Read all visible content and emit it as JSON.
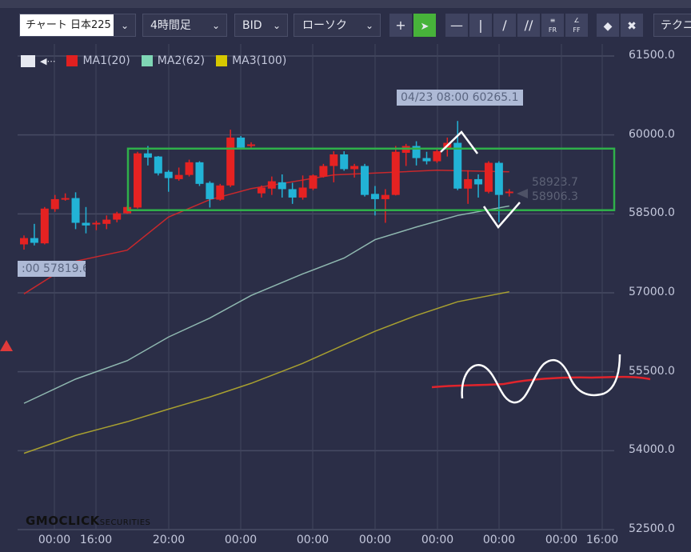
{
  "toolbar": {
    "symbol": "チャート 日本225",
    "timeframe": "4時間足",
    "price_type": "BID",
    "chart_type": "ローソク",
    "tools": [
      "crosshair-icon",
      "cursor-arrow-icon",
      "horizontal-line-icon",
      "vertical-line-icon",
      "trend-line-icon",
      "parallel-channel-icon",
      "fibonacci-retracement-icon",
      "fibonacci-fan-icon",
      "eraser-icon",
      "delete-all-drawings-icon"
    ],
    "technical_label": "テクニ",
    "active_tool_color": "#47b33a"
  },
  "legend": {
    "items": [
      {
        "label": "MA1(20)",
        "color": "#e02020"
      },
      {
        "label": "MA2(62)",
        "color": "#7fd6b5"
      },
      {
        "label": "MA3(100)",
        "color": "#d6c800"
      }
    ]
  },
  "chart_data": {
    "type": "candlestick",
    "ylim": [
      52500,
      61500
    ],
    "y_ticks": [
      "61500.0",
      "60000.0",
      "58500.0",
      "57000.0",
      "55500.0",
      "54000.0",
      "52500.0"
    ],
    "x_ticks": [
      "00:00",
      "16:00",
      "20:00",
      "00:00",
      "00:00",
      "00:00",
      "00:00",
      "00:00",
      "00:00",
      "16:00"
    ],
    "grid": true,
    "up_color": "#e52222",
    "down_color": "#22b3d6",
    "candles": [
      [
        57920,
        58090,
        57820,
        58040
      ],
      [
        58040,
        58310,
        57900,
        57950
      ],
      [
        57940,
        58630,
        57920,
        58600
      ],
      [
        58590,
        58860,
        58540,
        58780
      ],
      [
        58770,
        58890,
        58750,
        58800
      ],
      [
        58800,
        58910,
        58210,
        58330
      ],
      [
        58330,
        58630,
        58130,
        58280
      ],
      [
        58300,
        58370,
        58190,
        58330
      ],
      [
        58310,
        58470,
        58210,
        58390
      ],
      [
        58390,
        58540,
        58340,
        58510
      ],
      [
        58510,
        58650,
        58500,
        58630
      ],
      [
        58620,
        59680,
        58600,
        59650
      ],
      [
        59650,
        59790,
        59420,
        59570
      ],
      [
        59590,
        59600,
        59230,
        59270
      ],
      [
        59300,
        59330,
        58920,
        59180
      ],
      [
        59160,
        59380,
        59130,
        59240
      ],
      [
        59240,
        59530,
        59210,
        59480
      ],
      [
        59480,
        59500,
        59030,
        59070
      ],
      [
        59090,
        59120,
        58620,
        58780
      ],
      [
        58770,
        59070,
        58750,
        59040
      ],
      [
        59040,
        60100,
        59010,
        59950
      ],
      [
        59950,
        59980,
        59730,
        59760
      ],
      [
        59790,
        59860,
        59760,
        59820
      ],
      [
        58890,
        59040,
        58810,
        59000
      ],
      [
        58980,
        59210,
        58860,
        59120
      ],
      [
        59100,
        59250,
        58810,
        58970
      ],
      [
        58970,
        59090,
        58690,
        58810
      ],
      [
        58810,
        59230,
        58770,
        59000
      ],
      [
        58980,
        59250,
        58950,
        59230
      ],
      [
        59210,
        59450,
        59190,
        59410
      ],
      [
        59410,
        59690,
        59100,
        59630
      ],
      [
        59630,
        59690,
        59320,
        59350
      ],
      [
        59350,
        59450,
        59190,
        59410
      ],
      [
        59410,
        59450,
        58830,
        58860
      ],
      [
        58880,
        59030,
        58470,
        58780
      ],
      [
        58780,
        58970,
        58330,
        58860
      ],
      [
        58860,
        59790,
        58850,
        59680
      ],
      [
        59660,
        59830,
        59410,
        59790
      ],
      [
        59790,
        59880,
        59420,
        59560
      ],
      [
        59560,
        59680,
        59440,
        59500
      ],
      [
        59500,
        59730,
        59470,
        59690
      ],
      [
        59730,
        59950,
        59590,
        59850
      ],
      [
        59850,
        60265.1,
        58950,
        58980
      ],
      [
        58980,
        59330,
        58690,
        59160
      ],
      [
        59160,
        59250,
        58810,
        59060
      ],
      [
        58920,
        59500,
        58890,
        59470
      ],
      [
        59470,
        59500,
        58340,
        58860
      ],
      [
        58906.3,
        58970,
        58830,
        58923.7
      ]
    ],
    "ma_series": [
      {
        "name": "MA1(20)",
        "color": "#c8282c",
        "points": [
          [
            0,
            56980
          ],
          [
            5,
            57600
          ],
          [
            10,
            57810
          ],
          [
            14,
            58440
          ],
          [
            18,
            58770
          ],
          [
            22,
            58980
          ],
          [
            30,
            59240
          ],
          [
            40,
            59330
          ],
          [
            47,
            59300
          ]
        ]
      },
      {
        "name": "MA2(62)",
        "color": "#8fb8b0",
        "points": [
          [
            0,
            54900
          ],
          [
            5,
            55360
          ],
          [
            10,
            55710
          ],
          [
            14,
            56160
          ],
          [
            18,
            56520
          ],
          [
            22,
            56950
          ],
          [
            27,
            57360
          ],
          [
            31,
            57660
          ],
          [
            34,
            58010
          ],
          [
            38,
            58250
          ],
          [
            42,
            58470
          ],
          [
            47,
            58650
          ]
        ]
      },
      {
        "name": "MA3(100)",
        "color": "#a8a030",
        "points": [
          [
            0,
            53950
          ],
          [
            5,
            54290
          ],
          [
            10,
            54550
          ],
          [
            14,
            54790
          ],
          [
            18,
            55020
          ],
          [
            22,
            55280
          ],
          [
            27,
            55660
          ],
          [
            31,
            56010
          ],
          [
            34,
            56270
          ],
          [
            38,
            56570
          ],
          [
            42,
            56830
          ],
          [
            47,
            57020
          ]
        ]
      }
    ],
    "range_box": {
      "top": 59740,
      "bottom": 58570,
      "color": "#2fb04a"
    },
    "tooltips": [
      {
        "text": "04/23 08:00 60265.1"
      },
      {
        "text": ":00 57819.6"
      }
    ],
    "last_prices": [
      "58923.7",
      "58906.3"
    ]
  },
  "branding": {
    "logo_main": "GMOCLICK",
    "logo_sub": "SECURITIES"
  }
}
